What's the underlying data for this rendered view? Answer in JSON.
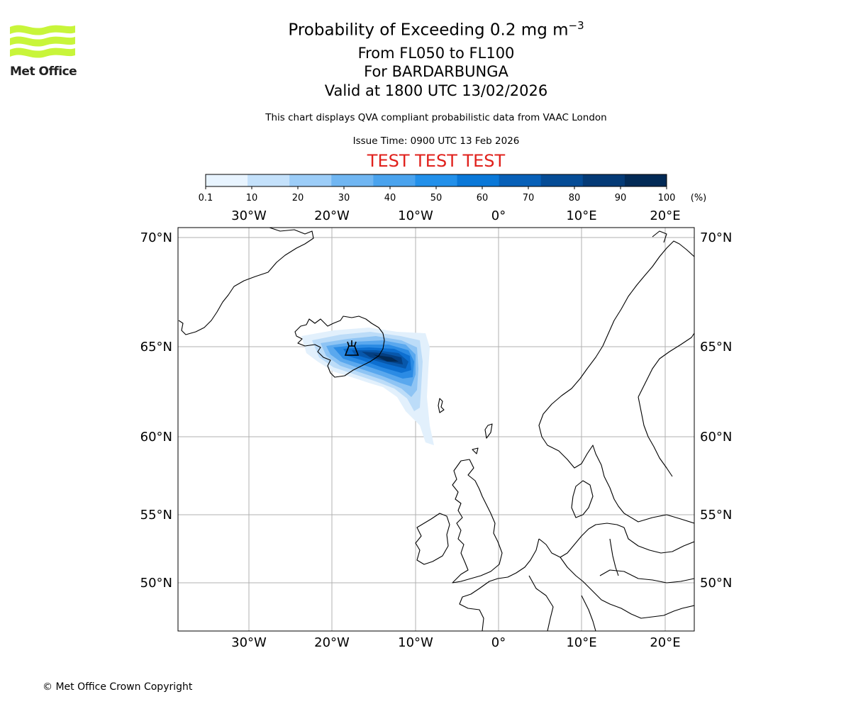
{
  "logo": {
    "text": "Met Office",
    "color": "#c8f53a"
  },
  "header": {
    "title_main": "Probability of Exceeding 0.2 mg m",
    "title_exponent": "−3",
    "level_range": "From FL050 to FL100",
    "volcano": "For BARDARBUNGA",
    "valid_time": "Valid at 1800 UTC 13/02/2026",
    "disclaimer": "This chart displays QVA compliant probabilistic data from VAAC London",
    "issue_time": "Issue Time: 0900 UTC 13 Feb 2026",
    "test_banner": "TEST TEST TEST"
  },
  "colorbar": {
    "tick_labels": [
      "0.1",
      "10",
      "20",
      "30",
      "40",
      "50",
      "60",
      "70",
      "80",
      "90",
      "100"
    ],
    "unit": "(%)",
    "colors": [
      "#e8f4ff",
      "#c4e1fb",
      "#9ccdf8",
      "#70b6f2",
      "#4aa3ee",
      "#2290ea",
      "#0a78d8",
      "#0760b8",
      "#054c96",
      "#043a76",
      "#022a56"
    ]
  },
  "map": {
    "lon_labels_top": [
      "30°W",
      "20°W",
      "10°W",
      "0°",
      "10°E",
      "20°E"
    ],
    "lon_labels_bottom": [
      "30°W",
      "20°W",
      "10°W",
      "0°",
      "10°E",
      "20°E"
    ],
    "lat_labels_left": [
      "70°N",
      "65°N",
      "60°N",
      "55°N",
      "50°N"
    ],
    "lat_labels_right": [
      "70°N",
      "65°N",
      "60°N",
      "55°N",
      "50°N"
    ],
    "volcano_marker": "volcano-icon",
    "probability_band_percent": "0.1–100"
  },
  "footer": {
    "copyright": "© Met Office Crown Copyright"
  }
}
